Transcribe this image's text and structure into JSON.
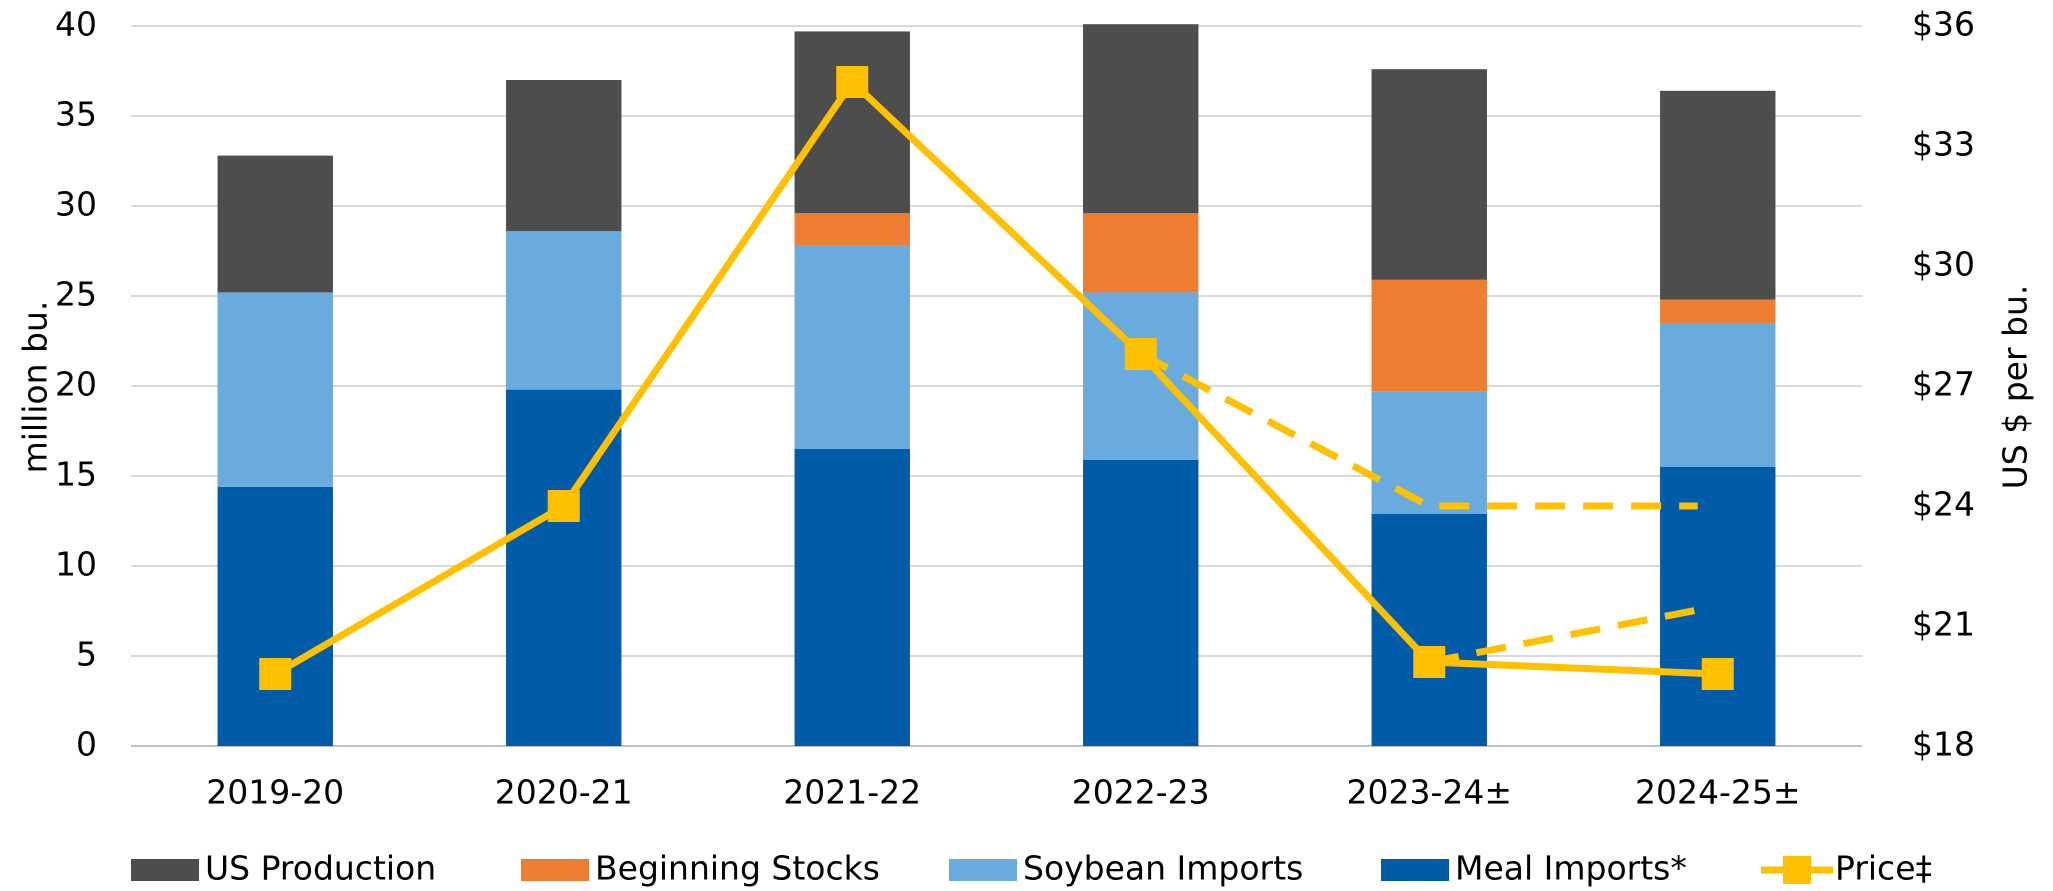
{
  "chart_data": {
    "type": "bar",
    "categories": [
      "2019-20",
      "2020-21",
      "2021-22",
      "2022-23",
      "2023-24±",
      "2024-25±"
    ],
    "series": [
      {
        "name": "Meal Imports*",
        "color": "#005ba8",
        "values": [
          14.4,
          19.8,
          16.5,
          15.9,
          12.9,
          15.5
        ]
      },
      {
        "name": "Soybean Imports",
        "color": "#6aabdf",
        "values": [
          10.8,
          8.8,
          11.3,
          9.3,
          6.8,
          8.0
        ]
      },
      {
        "name": "Beginning Stocks",
        "color": "#ed7d31",
        "values": [
          0,
          0,
          1.8,
          4.4,
          6.2,
          1.3
        ]
      },
      {
        "name": "US Production",
        "color": "#4d4d4d",
        "values": [
          7.6,
          8.4,
          10.1,
          10.5,
          11.7,
          11.6
        ]
      },
      {
        "name": "Price‡",
        "color": "#ffc000",
        "type": "line",
        "axis": "y2",
        "values": [
          19.8,
          24.0,
          34.6,
          27.8,
          20.1,
          19.8
        ],
        "range_high": [
          null,
          null,
          null,
          27.8,
          24.0,
          24.0
        ],
        "range_low": [
          null,
          null,
          null,
          null,
          20.1,
          21.4
        ]
      }
    ],
    "legend_order": [
      "US Production",
      "Beginning Stocks",
      "Soybean Imports",
      "Meal Imports*",
      "Price‡"
    ],
    "ylabel": "million bu.",
    "y2label": "US $ per bu.",
    "ylim": [
      0,
      40
    ],
    "yticks": [
      0,
      5,
      10,
      15,
      20,
      25,
      30,
      35,
      40
    ],
    "y2lim": [
      18,
      36
    ],
    "y2ticks": [
      {
        "value": 18,
        "label": "$18"
      },
      {
        "value": 21,
        "label": "$21"
      },
      {
        "value": 24,
        "label": "$24"
      },
      {
        "value": 27,
        "label": "$27"
      },
      {
        "value": 30,
        "label": "$30"
      },
      {
        "value": 33,
        "label": "$33"
      },
      {
        "value": 36,
        "label": "$36"
      }
    ],
    "grid": true,
    "legend": "bottom"
  }
}
